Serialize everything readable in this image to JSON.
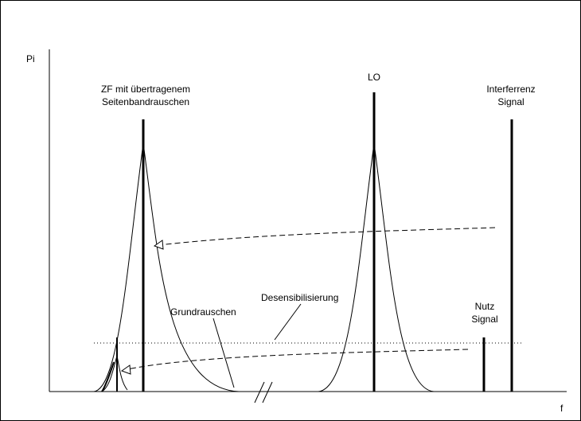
{
  "diagram": {
    "axis_y_label": "Pi",
    "axis_x_label": "f",
    "labels": {
      "zf_line1": "ZF mit übertragenem",
      "zf_line2": "Seitenbandrauschen",
      "lo": "LO",
      "interferenz_line1": "Interferrenz",
      "interferenz_line2": "Signal",
      "nutz_line1": "Nutz",
      "nutz_line2": "Signal",
      "grundrauschen": "Grundrauschen",
      "desensibilisierung": "Desensibilisierung"
    },
    "colors": {
      "stroke": "#000000",
      "background": "#ffffff"
    }
  }
}
